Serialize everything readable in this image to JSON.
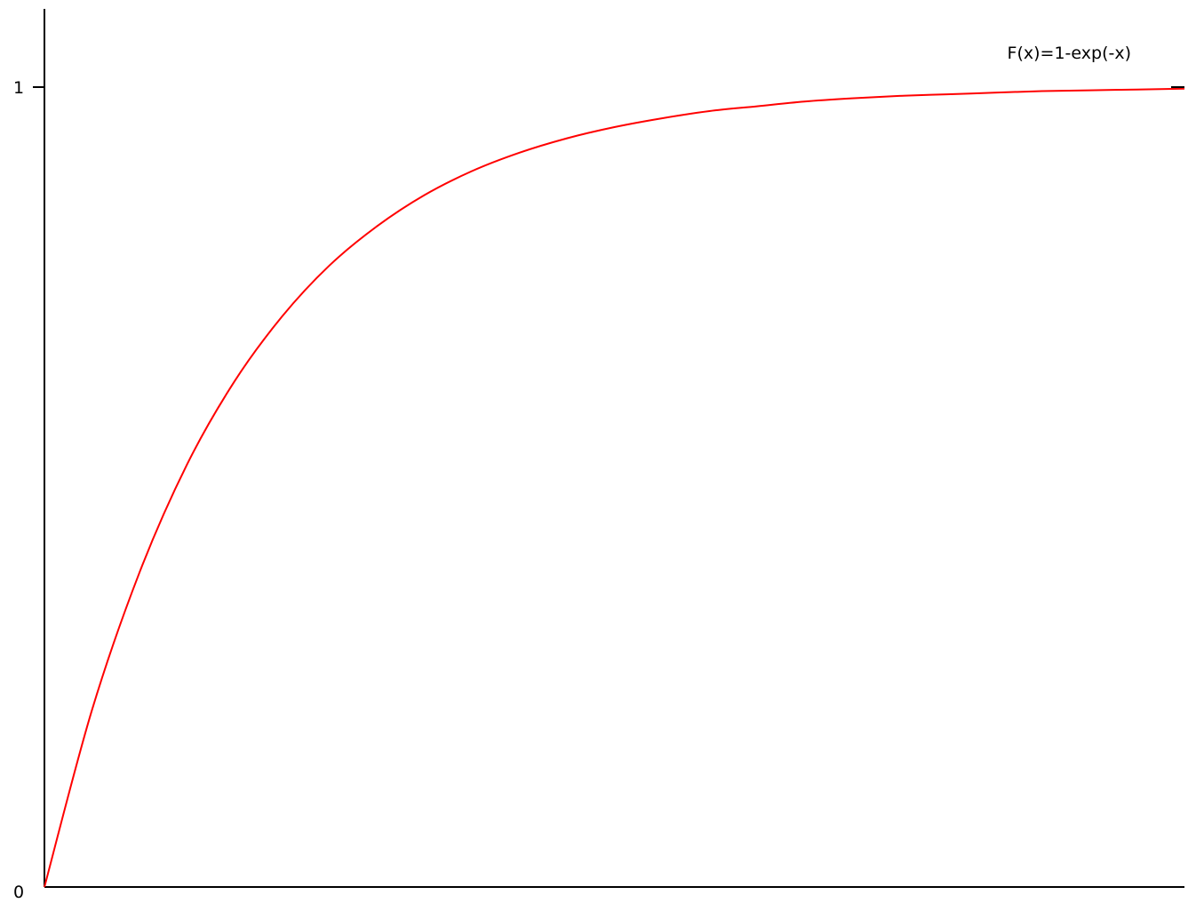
{
  "chart_data": {
    "type": "line",
    "title": "",
    "xlabel": "",
    "ylabel": "",
    "xlim": [
      0,
      6.0
    ],
    "ylim": [
      0,
      1.1
    ],
    "yticks": [
      {
        "value": 0,
        "label": "0"
      },
      {
        "value": 1,
        "label": "1"
      }
    ],
    "grid": false,
    "legend_position": "top-right",
    "series": [
      {
        "name": "F(x)=1-exp(-x)",
        "color": "#ff0000",
        "x": [
          0,
          0.25,
          0.5,
          0.75,
          1.0,
          1.25,
          1.5,
          1.75,
          2.0,
          2.25,
          2.5,
          2.75,
          3.0,
          3.25,
          3.5,
          3.75,
          4.0,
          4.25,
          4.5,
          4.75,
          5.0,
          5.25,
          5.5,
          5.75,
          6.0
        ],
        "y": [
          0,
          0.221,
          0.393,
          0.528,
          0.632,
          0.713,
          0.777,
          0.826,
          0.865,
          0.895,
          0.918,
          0.936,
          0.95,
          0.961,
          0.97,
          0.976,
          0.982,
          0.986,
          0.989,
          0.991,
          0.993,
          0.995,
          0.996,
          0.997,
          0.998
        ]
      }
    ]
  }
}
